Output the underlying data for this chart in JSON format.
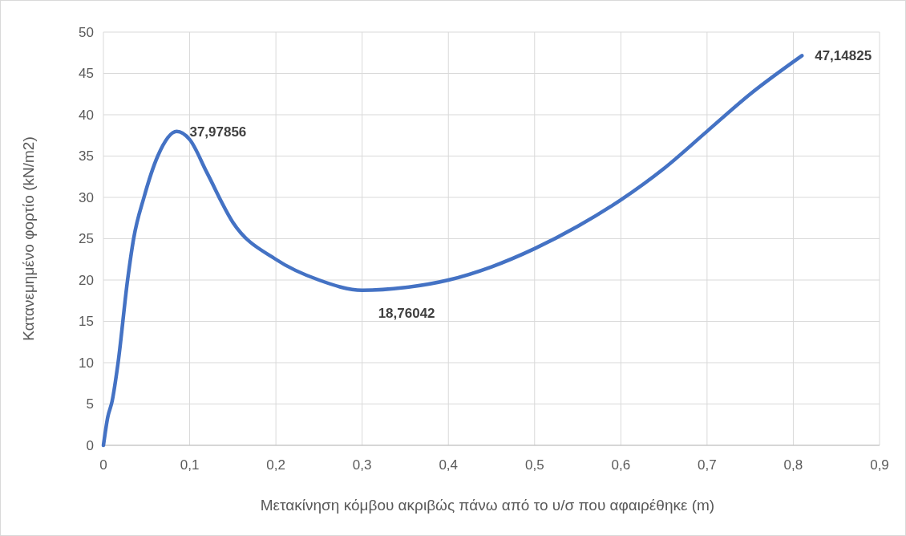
{
  "chart_data": {
    "type": "line",
    "xlabel": "Μετακίνηση κόμβου ακριβώς πάνω από το υ/σ που αφαιρέθηκε (m)",
    "ylabel": "Κατανεμημένο φορτίο (kN/m2)",
    "xlim": [
      0,
      0.9
    ],
    "xticks": [
      0,
      {
        "value": 0.1,
        "label": "0,1"
      },
      {
        "value": 0.2,
        "label": "0,2"
      },
      {
        "value": 0.3,
        "label": "0,3"
      },
      {
        "value": 0.4,
        "label": "0,4"
      },
      {
        "value": 0.5,
        "label": "0,5"
      },
      {
        "value": 0.6,
        "label": "0,6"
      },
      {
        "value": 0.7,
        "label": "0,7"
      },
      {
        "value": 0.8,
        "label": "0,8"
      },
      {
        "value": 0.9,
        "label": "0,9"
      }
    ],
    "ylim": [
      0,
      50
    ],
    "yticks": [
      0,
      5,
      10,
      15,
      20,
      25,
      30,
      35,
      40,
      45,
      50
    ],
    "grid": true,
    "marker": "none",
    "line_style": "solid",
    "series": [
      {
        "color": "#4472c4",
        "x": [
          0,
          0.005,
          0.01,
          0.017,
          0.028,
          0.035,
          0.047,
          0.063,
          0.085,
          0.1,
          0.12,
          0.15,
          0.2,
          0.25,
          0.3,
          0.35,
          0.4,
          0.45,
          0.5,
          0.55,
          0.6,
          0.65,
          0.7,
          0.75,
          0.81
        ],
        "values": [
          0,
          3.4,
          5.3,
          10,
          20,
          25,
          30,
          35,
          37.97856,
          37,
          33,
          27,
          22.5,
          20,
          18.76042,
          19.1,
          20,
          21.6,
          23.8,
          26.5,
          29.7,
          33.5,
          38,
          42.5,
          47.14825
        ],
        "value_labels": [
          null,
          null,
          null,
          null,
          null,
          null,
          null,
          null,
          "37,97856",
          null,
          null,
          null,
          null,
          null,
          "18,76042",
          null,
          null,
          null,
          null,
          null,
          null,
          null,
          null,
          null,
          "47,14825"
        ]
      }
    ]
  }
}
